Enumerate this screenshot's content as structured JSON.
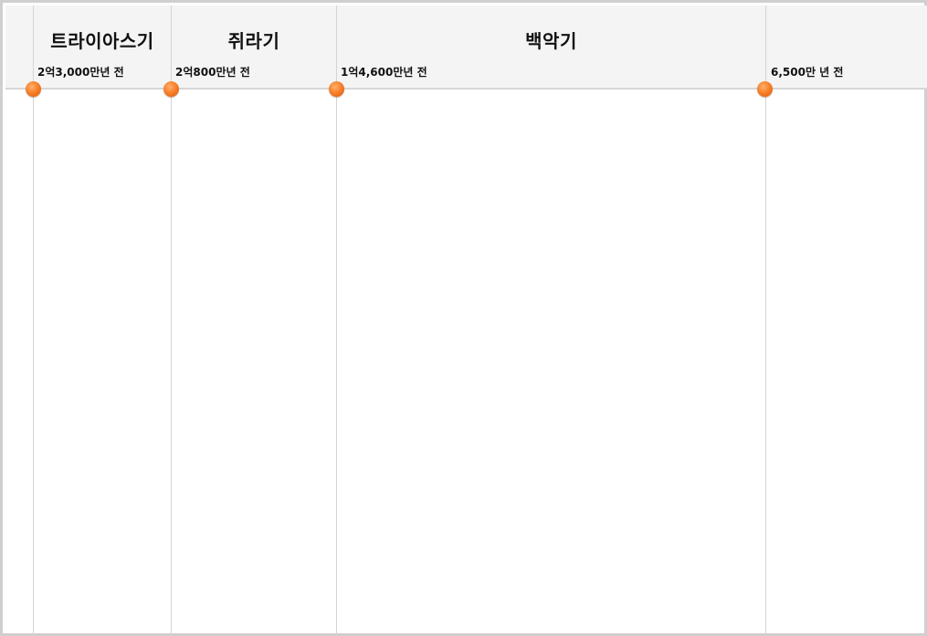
{
  "timeline": {
    "periods": [
      {
        "name": "트라이아스기"
      },
      {
        "name": "쥐라기"
      },
      {
        "name": "백악기"
      }
    ],
    "boundaries": [
      {
        "label": "2억3,000만년 전"
      },
      {
        "label": "2억800만년 전"
      },
      {
        "label": "1억4,600만년 전"
      },
      {
        "label": "6,500만 년 전"
      }
    ],
    "marker_color": "#f7812a",
    "header_background": "#f4f4f4",
    "divider_color": "#d4d4d4"
  }
}
